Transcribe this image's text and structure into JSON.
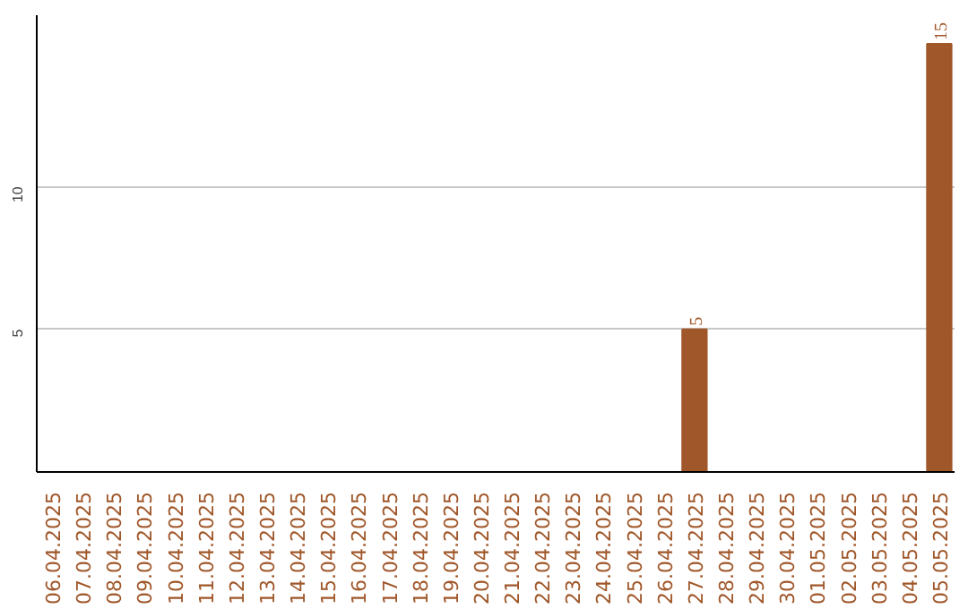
{
  "chart_data": {
    "type": "bar",
    "categories": [
      "06.04.2025",
      "07.04.2025",
      "08.04.2025",
      "09.04.2025",
      "10.04.2025",
      "11.04.2025",
      "12.04.2025",
      "13.04.2025",
      "14.04.2025",
      "15.04.2025",
      "16.04.2025",
      "17.04.2025",
      "18.04.2025",
      "19.04.2025",
      "20.04.2025",
      "21.04.2025",
      "22.04.2025",
      "23.04.2025",
      "24.04.2025",
      "25.04.2025",
      "26.04.2025",
      "27.04.2025",
      "28.04.2025",
      "29.04.2025",
      "30.04.2025",
      "01.05.2025",
      "02.05.2025",
      "03.05.2025",
      "04.05.2025",
      "05.05.2025"
    ],
    "values": [
      0,
      0,
      0,
      0,
      0,
      0,
      0,
      0,
      0,
      0,
      0,
      0,
      0,
      0,
      0,
      0,
      0,
      0,
      0,
      0,
      0,
      5,
      0,
      0,
      0,
      0,
      0,
      0,
      0,
      15
    ],
    "value_labels": [
      null,
      null,
      null,
      null,
      null,
      null,
      null,
      null,
      null,
      null,
      null,
      null,
      null,
      null,
      null,
      null,
      null,
      null,
      null,
      null,
      null,
      "5",
      null,
      null,
      null,
      null,
      null,
      null,
      null,
      "15"
    ],
    "color": "#a0572a",
    "ylim": [
      0,
      16
    ],
    "yticks": [
      5,
      10
    ],
    "grid": "y"
  }
}
